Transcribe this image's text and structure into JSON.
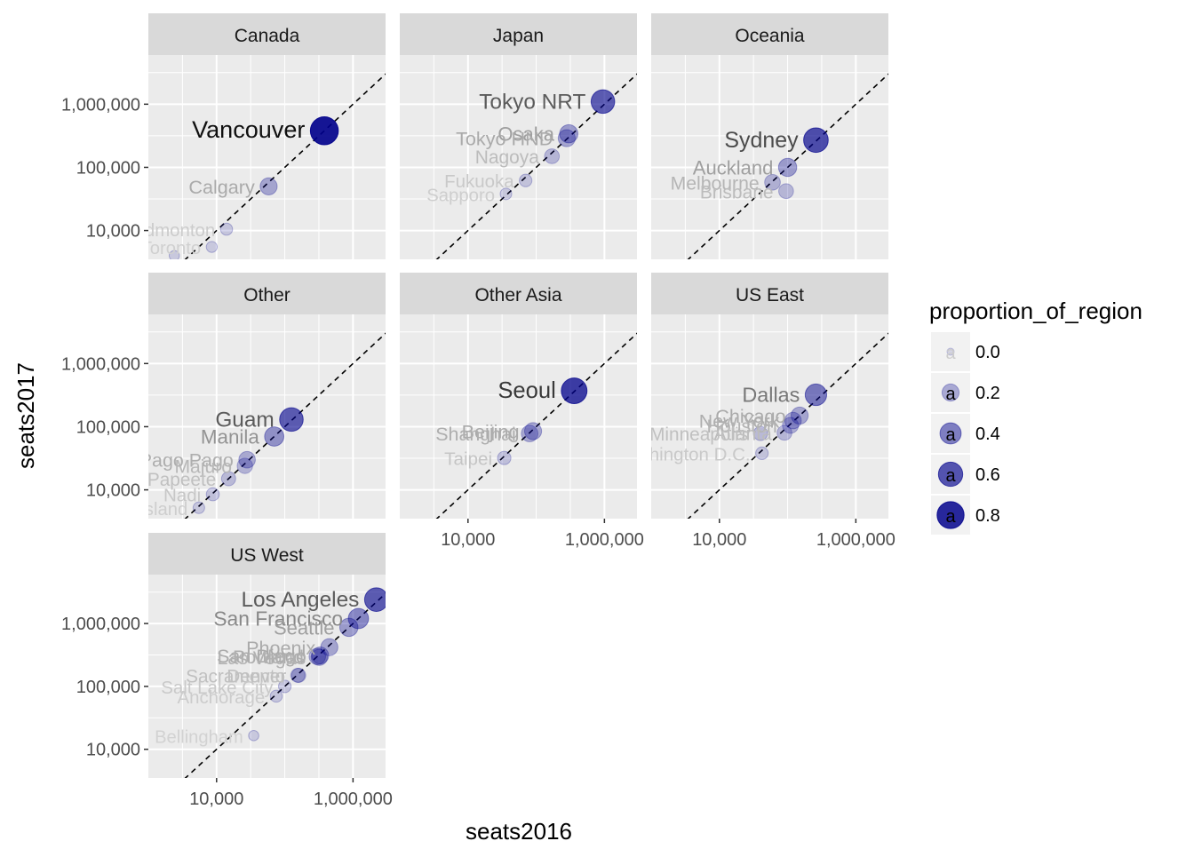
{
  "chart_data": {
    "type": "scatter",
    "facet_by": "region",
    "x_scale": "log10",
    "y_scale": "log10",
    "xlabel": "seats2016",
    "ylabel": "seats2017",
    "x_ticks": [
      {
        "value": 10000,
        "label": "10,000"
      },
      {
        "value": 1000000,
        "label": "1,000,000"
      }
    ],
    "y_ticks": [
      {
        "value": 10000,
        "label": "10,000"
      },
      {
        "value": 100000,
        "label": "100,000"
      },
      {
        "value": 1000000,
        "label": "1,000,000"
      }
    ],
    "xlim": [
      1000,
      3000000
    ],
    "ylim": [
      3500,
      6000000
    ],
    "reference_line": "y = x",
    "grid": true,
    "legend": {
      "title": "proportion_of_region",
      "placement": "right",
      "items": [
        {
          "value": 0.0,
          "label": "0.0"
        },
        {
          "value": 0.2,
          "label": "0.2"
        },
        {
          "value": 0.4,
          "label": "0.4"
        },
        {
          "value": 0.6,
          "label": "0.6"
        },
        {
          "value": 0.8,
          "label": "0.8"
        }
      ],
      "key_glyph": "a"
    },
    "colors": {
      "point": "#00008B",
      "panel_bg": "#EBEBEB",
      "strip_bg": "#D9D9D9",
      "grid": "#FFFFFF"
    },
    "facets": [
      {
        "name": "Canada",
        "points": [
          {
            "label": "Vancouver",
            "x": 380000,
            "y": 380000,
            "p": 0.88
          },
          {
            "label": "Calgary",
            "x": 58000,
            "y": 50000,
            "p": 0.2
          },
          {
            "label": "Edmonton",
            "x": 14000,
            "y": 10500,
            "p": 0.05
          },
          {
            "label": "Toronto",
            "x": 8500,
            "y": 5500,
            "p": 0.03
          },
          {
            "label": "",
            "x": 2400,
            "y": 4000,
            "p": 0.02
          }
        ]
      },
      {
        "name": "Japan",
        "points": [
          {
            "label": "Tokyo NRT",
            "x": 950000,
            "y": 1100000,
            "p": 0.55
          },
          {
            "label": "Osaka",
            "x": 300000,
            "y": 340000,
            "p": 0.25
          },
          {
            "label": "Tokyo HND",
            "x": 280000,
            "y": 290000,
            "p": 0.2
          },
          {
            "label": "Nagoya",
            "x": 170000,
            "y": 150000,
            "p": 0.12
          },
          {
            "label": "Fukuoka",
            "x": 70000,
            "y": 62000,
            "p": 0.06
          },
          {
            "label": "Sapporo",
            "x": 36000,
            "y": 38000,
            "p": 0.04
          }
        ]
      },
      {
        "name": "Oceania",
        "points": [
          {
            "label": "Sydney",
            "x": 260000,
            "y": 270000,
            "p": 0.62
          },
          {
            "label": "Auckland",
            "x": 100000,
            "y": 100000,
            "p": 0.25
          },
          {
            "label": "Melbourne",
            "x": 60000,
            "y": 58000,
            "p": 0.15
          },
          {
            "label": "Brisbane",
            "x": 95000,
            "y": 42000,
            "p": 0.12
          }
        ]
      },
      {
        "name": "Other",
        "points": [
          {
            "label": "Guam",
            "x": 125000,
            "y": 130000,
            "p": 0.55
          },
          {
            "label": "Manila",
            "x": 70000,
            "y": 70000,
            "p": 0.3
          },
          {
            "label": "Pago Pago",
            "x": 28000,
            "y": 30000,
            "p": 0.18
          },
          {
            "label": "Majuro",
            "x": 26000,
            "y": 24000,
            "p": 0.14
          },
          {
            "label": "Papeete",
            "x": 15000,
            "y": 15000,
            "p": 0.1
          },
          {
            "label": "Nadi",
            "x": 8800,
            "y": 8500,
            "p": 0.07
          },
          {
            "label": "Island",
            "x": 5500,
            "y": 5200,
            "p": 0.04
          }
        ]
      },
      {
        "name": "Other Asia",
        "points": [
          {
            "label": "Seoul",
            "x": 360000,
            "y": 370000,
            "p": 0.7
          },
          {
            "label": "Beijing",
            "x": 90000,
            "y": 85000,
            "p": 0.2
          },
          {
            "label": "Shanghai",
            "x": 80000,
            "y": 78000,
            "p": 0.18
          },
          {
            "label": "Taipei",
            "x": 34000,
            "y": 32000,
            "p": 0.08
          }
        ]
      },
      {
        "name": "US East",
        "points": [
          {
            "label": "Dallas",
            "x": 260000,
            "y": 320000,
            "p": 0.42
          },
          {
            "label": "Chicago",
            "x": 150000,
            "y": 150000,
            "p": 0.2
          },
          {
            "label": "New York",
            "x": 120000,
            "y": 125000,
            "p": 0.18
          },
          {
            "label": "Houston",
            "x": 110000,
            "y": 105000,
            "p": 0.16
          },
          {
            "label": "Atlanta",
            "x": 90000,
            "y": 80000,
            "p": 0.12
          },
          {
            "label": "Minneapolis",
            "x": 40000,
            "y": 78000,
            "p": 0.1
          },
          {
            "label": "Washington D.C.",
            "x": 42000,
            "y": 38000,
            "p": 0.06
          }
        ]
      },
      {
        "name": "US West",
        "points": [
          {
            "label": "Los Angeles",
            "x": 2200000,
            "y": 2400000,
            "p": 0.55
          },
          {
            "label": "San Francisco",
            "x": 1200000,
            "y": 1200000,
            "p": 0.35
          },
          {
            "label": "Seattle",
            "x": 870000,
            "y": 870000,
            "p": 0.25
          },
          {
            "label": "Phoenix",
            "x": 450000,
            "y": 420000,
            "p": 0.2
          },
          {
            "label": "San Diego",
            "x": 330000,
            "y": 310000,
            "p": 0.2
          },
          {
            "label": "Portland",
            "x": 300000,
            "y": 300000,
            "p": 0.18
          },
          {
            "label": "Las Vegas",
            "x": 320000,
            "y": 290000,
            "p": 0.17
          },
          {
            "label": "Denver",
            "x": 160000,
            "y": 150000,
            "p": 0.1
          },
          {
            "label": "Sacramento",
            "x": 155000,
            "y": 150000,
            "p": 0.1
          },
          {
            "label": "Salt Lake City",
            "x": 100000,
            "y": 100000,
            "p": 0.06
          },
          {
            "label": "Anchorage",
            "x": 75000,
            "y": 70000,
            "p": 0.05
          },
          {
            "label": "Bellingham",
            "x": 35000,
            "y": 16500,
            "p": 0.02
          }
        ]
      }
    ]
  }
}
